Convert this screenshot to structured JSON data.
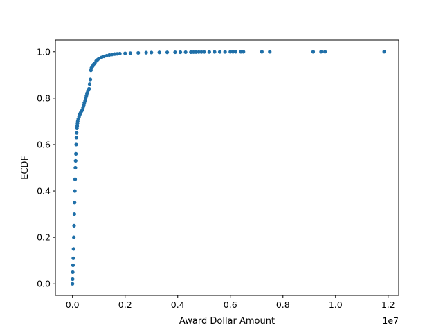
{
  "chart_data": {
    "type": "scatter",
    "xlabel": "Award Dollar Amount",
    "ylabel": "ECDF",
    "x_offset_label": "1e7",
    "xlim": [
      -650000,
      12400000
    ],
    "ylim": [
      -0.05,
      1.05
    ],
    "x_ticks": [
      0,
      2000000,
      4000000,
      6000000,
      8000000,
      10000000,
      12000000
    ],
    "x_tick_labels": [
      "0.0",
      "0.2",
      "0.4",
      "0.6",
      "0.8",
      "1.0",
      "1.2"
    ],
    "y_ticks": [
      0.0,
      0.2,
      0.4,
      0.6,
      0.8,
      1.0
    ],
    "y_tick_labels": [
      "0.0",
      "0.2",
      "0.4",
      "0.6",
      "0.8",
      "1.0"
    ],
    "grid": false,
    "marker_color": "#1f6fa8",
    "series": [
      {
        "x": [
          0,
          5000,
          10000,
          20000,
          30000,
          40000,
          50000,
          60000,
          70000,
          80000,
          90000,
          100000,
          110000,
          120000,
          130000,
          140000,
          150000,
          160000,
          170000,
          180000,
          190000,
          200000,
          220000,
          250000,
          280000,
          300000,
          320000,
          350000,
          380000,
          400000,
          430000,
          450000,
          480000,
          500000,
          530000,
          550000,
          580000,
          600000,
          630000,
          650000,
          680000,
          700000,
          720000,
          750000,
          780000,
          800000,
          850000,
          900000,
          950000,
          1000000,
          1100000,
          1200000,
          1300000,
          1400000,
          1500000,
          1600000,
          1700000,
          1800000,
          2000000,
          2200000,
          2500000,
          2800000,
          3000000,
          3300000,
          3600000,
          3900000,
          4100000,
          4300000,
          4500000,
          4600000,
          4700000,
          4800000,
          4900000,
          5000000,
          5200000,
          5400000,
          5600000,
          5800000,
          6000000,
          6100000,
          6200000,
          6400000,
          6500000,
          7200000,
          7500000,
          9150000,
          9450000,
          9600000,
          11850000
        ],
        "y": [
          0.0,
          0.02,
          0.05,
          0.08,
          0.11,
          0.15,
          0.2,
          0.25,
          0.3,
          0.35,
          0.4,
          0.45,
          0.5,
          0.53,
          0.56,
          0.6,
          0.63,
          0.65,
          0.67,
          0.68,
          0.69,
          0.7,
          0.71,
          0.72,
          0.73,
          0.735,
          0.74,
          0.745,
          0.75,
          0.76,
          0.77,
          0.78,
          0.79,
          0.8,
          0.81,
          0.82,
          0.83,
          0.835,
          0.84,
          0.86,
          0.88,
          0.92,
          0.93,
          0.935,
          0.94,
          0.945,
          0.95,
          0.96,
          0.965,
          0.97,
          0.975,
          0.98,
          0.983,
          0.986,
          0.988,
          0.99,
          0.991,
          0.992,
          0.993,
          0.994,
          0.995,
          0.996,
          0.9965,
          0.997,
          0.9973,
          0.9976,
          0.9978,
          0.998,
          0.9982,
          0.9984,
          0.9986,
          0.9987,
          0.9988,
          0.9989,
          0.999,
          0.9991,
          0.9992,
          0.9993,
          0.9994,
          0.99945,
          0.9995,
          0.99955,
          0.9996,
          0.99965,
          0.9997,
          0.99975,
          0.9998,
          0.99985,
          1.0
        ]
      }
    ]
  }
}
